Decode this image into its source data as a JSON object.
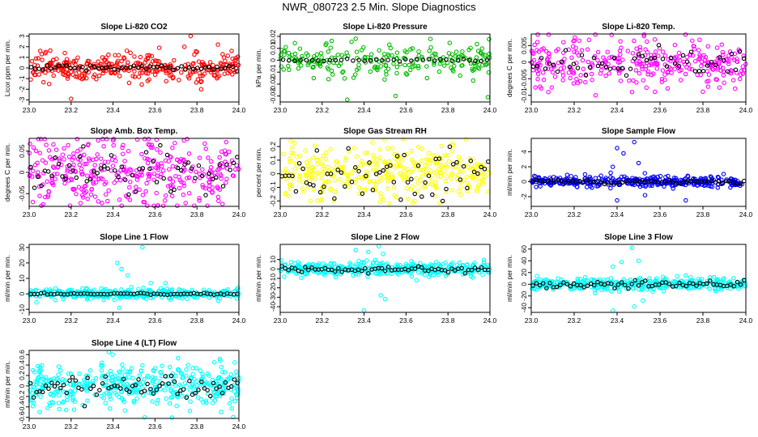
{
  "title": "NWR_080723  2.5 Min. Slope Diagnostics",
  "chart_data": [
    {
      "type": "scatter",
      "title": "Slope Li-820 CO2",
      "ylabel": "Licor ppm per min.",
      "xlim": [
        23.0,
        24.0
      ],
      "ylim": [
        -3.2,
        3.2
      ],
      "xticks": [
        23.0,
        23.2,
        23.4,
        23.6,
        23.8,
        24.0
      ],
      "yticks": [
        -3,
        -2,
        -1,
        0,
        1,
        2,
        3
      ],
      "color": "#ff0000",
      "n": 320,
      "spread": 0.6,
      "outliers": [
        [
          23.06,
          1.3
        ],
        [
          23.08,
          1.5
        ],
        [
          23.17,
          1.4
        ],
        [
          23.2,
          -2.9
        ],
        [
          23.62,
          1.9
        ],
        [
          23.74,
          2.0
        ],
        [
          23.77,
          3.0
        ],
        [
          23.8,
          1.5
        ],
        [
          23.82,
          -2.0
        ],
        [
          23.9,
          2.2
        ]
      ],
      "ref_spread": 0.12
    },
    {
      "type": "scatter",
      "title": "Slope Li-820 Pressure",
      "ylabel": "kPa per min.",
      "xlim": [
        23.0,
        24.0
      ],
      "ylim": [
        -0.035,
        0.022
      ],
      "xticks": [
        23.0,
        23.2,
        23.4,
        23.6,
        23.8,
        24.0
      ],
      "yticks": [
        -0.03,
        -0.02,
        -0.01,
        0.0,
        0.01,
        0.02
      ],
      "color": "#00bb00",
      "n": 220,
      "spread": 0.006,
      "outliers": [
        [
          23.16,
          -0.015
        ],
        [
          23.25,
          -0.012
        ],
        [
          23.32,
          -0.033
        ],
        [
          23.36,
          0.018
        ],
        [
          23.55,
          -0.03
        ],
        [
          23.7,
          -0.015
        ],
        [
          23.92,
          -0.017
        ],
        [
          23.99,
          -0.031
        ],
        [
          23.22,
          0.014
        ],
        [
          23.52,
          0.013
        ]
      ],
      "ref_spread": 0.0005
    },
    {
      "type": "scatter",
      "title": "Slope Li-820 Temp.",
      "ylabel": "degrees C per min.",
      "xlim": [
        23.0,
        24.0
      ],
      "ylim": [
        -0.012,
        0.0085
      ],
      "xticks": [
        23.0,
        23.2,
        23.4,
        23.6,
        23.8,
        24.0
      ],
      "yticks": [
        -0.01,
        -0.005,
        0.0,
        0.005
      ],
      "color": "#ff00ff",
      "n": 320,
      "spread": 0.0035,
      "outliers": [
        [
          23.08,
          -0.009
        ],
        [
          23.15,
          0.006
        ],
        [
          23.3,
          -0.01
        ],
        [
          23.75,
          0.0065
        ],
        [
          23.95,
          -0.008
        ]
      ],
      "ref_spread": 0.002
    },
    {
      "type": "scatter",
      "title": "Slope Amb. Box Temp.",
      "ylabel": "degrees C per min.",
      "xlim": [
        23.0,
        24.0
      ],
      "ylim": [
        -0.08,
        0.08
      ],
      "xticks": [
        23.0,
        23.2,
        23.4,
        23.6,
        23.8,
        24.0
      ],
      "yticks": [
        -0.05,
        0.0,
        0.05
      ],
      "color": "#ff00ff",
      "n": 360,
      "spread": 0.045,
      "outliers": [
        [
          23.4,
          0.075
        ],
        [
          23.55,
          -0.07
        ]
      ],
      "ref_spread": 0.03
    },
    {
      "type": "scatter",
      "title": "Slope Gas Stream RH",
      "ylabel": "percent per min.",
      "xlim": [
        23.0,
        24.0
      ],
      "ylim": [
        -0.24,
        0.26
      ],
      "xticks": [
        23.0,
        23.2,
        23.4,
        23.6,
        23.8,
        24.0
      ],
      "yticks": [
        -0.2,
        -0.1,
        0.0,
        0.1,
        0.2
      ],
      "color": "#ffff00",
      "n": 360,
      "spread": 0.09,
      "outliers": [
        [
          23.05,
          0.24
        ],
        [
          23.44,
          0.23
        ],
        [
          23.52,
          -0.22
        ],
        [
          23.82,
          0.22
        ]
      ],
      "ref_spread": 0.09
    },
    {
      "type": "scatter",
      "title": "Slope Sample Flow",
      "ylabel": "ml/min per min.",
      "xlim": [
        23.0,
        24.0
      ],
      "ylim": [
        -3.3,
        5.8
      ],
      "xticks": [
        23.0,
        23.2,
        23.4,
        23.6,
        23.8,
        24.0
      ],
      "yticks": [
        -2,
        0,
        2,
        4
      ],
      "color": "#0000ff",
      "n": 360,
      "spread": 0.35,
      "outliers": [
        [
          23.38,
          2.0
        ],
        [
          23.4,
          4.5
        ],
        [
          23.43,
          3.8
        ],
        [
          23.48,
          5.3
        ],
        [
          23.5,
          2.5
        ],
        [
          23.4,
          -2.5
        ],
        [
          23.53,
          -1.8
        ],
        [
          23.72,
          -2.5
        ],
        [
          23.37,
          1.2
        ]
      ],
      "ref_spread": 0.12
    },
    {
      "type": "scatter",
      "title": "Slope Line 1 Flow",
      "ylabel": "ml/min per min.",
      "xlim": [
        23.0,
        24.0
      ],
      "ylim": [
        -12,
        32
      ],
      "xticks": [
        23.0,
        23.2,
        23.4,
        23.6,
        23.8,
        24.0
      ],
      "yticks": [
        -10,
        0,
        10,
        20,
        30
      ],
      "color": "#00ffff",
      "n": 380,
      "spread": 1.6,
      "outliers": [
        [
          23.42,
          20
        ],
        [
          23.44,
          16
        ],
        [
          23.47,
          12
        ],
        [
          23.54,
          30
        ],
        [
          23.43,
          -9
        ],
        [
          23.58,
          7
        ],
        [
          23.65,
          7
        ]
      ],
      "ref_spread": 0.3
    },
    {
      "type": "scatter",
      "title": "Slope Line 2 Flow",
      "ylabel": "ml/min per min.",
      "xlim": [
        23.0,
        24.0
      ],
      "ylim": [
        -46,
        26
      ],
      "xticks": [
        23.0,
        23.2,
        23.4,
        23.6,
        23.8,
        24.0
      ],
      "yticks": [
        -40,
        -30,
        -20,
        -10,
        0,
        10
      ],
      "color": "#00ffff",
      "n": 380,
      "spread": 3.5,
      "outliers": [
        [
          23.36,
          20
        ],
        [
          23.42,
          18
        ],
        [
          23.47,
          24
        ],
        [
          23.49,
          16
        ],
        [
          23.4,
          -44
        ],
        [
          23.48,
          -28
        ],
        [
          23.5,
          -32
        ],
        [
          23.65,
          -12
        ]
      ],
      "ref_spread": 1.5
    },
    {
      "type": "scatter",
      "title": "Slope Line 3 Flow",
      "ylabel": "ml/min per min.",
      "xlim": [
        23.0,
        24.0
      ],
      "ylim": [
        -48,
        68
      ],
      "xticks": [
        23.0,
        23.2,
        23.4,
        23.6,
        23.8,
        24.0
      ],
      "yticks": [
        -40,
        -20,
        0,
        20,
        40,
        60
      ],
      "color": "#00ffff",
      "n": 380,
      "spread": 5.0,
      "outliers": [
        [
          23.38,
          30
        ],
        [
          23.42,
          38
        ],
        [
          23.47,
          62
        ],
        [
          23.5,
          40
        ],
        [
          23.38,
          -45
        ],
        [
          23.48,
          -38
        ],
        [
          23.52,
          -28
        ],
        [
          23.72,
          15
        ]
      ],
      "ref_spread": 3.0
    },
    {
      "type": "scatter",
      "title": "Slope Line 4 (LT) Flow",
      "ylabel": "ml/min per min.",
      "xlim": [
        23.0,
        24.0
      ],
      "ylim": [
        -0.62,
        0.68
      ],
      "xticks": [
        23.0,
        23.2,
        23.4,
        23.6,
        23.8,
        24.0
      ],
      "yticks": [
        -0.6,
        -0.4,
        -0.2,
        0.0,
        0.2,
        0.4,
        0.6
      ],
      "color": "#00ffff",
      "n": 420,
      "spread": 0.2,
      "outliers": [
        [
          23.38,
          0.65
        ],
        [
          23.55,
          -0.6
        ],
        [
          23.98,
          0.45
        ],
        [
          23.05,
          -0.5
        ]
      ],
      "ref_spread": 0.12
    }
  ]
}
